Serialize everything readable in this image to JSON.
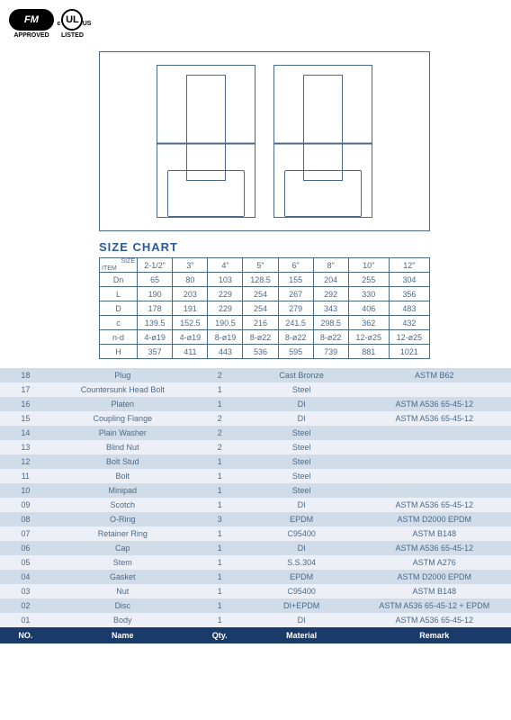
{
  "logos": {
    "fm": "FM",
    "fm_label": "APPROVED",
    "ul": "UL",
    "ul_c": "c",
    "ul_us": "US",
    "ul_label": "LISTED"
  },
  "sizechart": {
    "title": "SIZE CHART",
    "corner_size": "SIZE",
    "corner_item": "ITEM",
    "headers": [
      "2-1/2\"",
      "3\"",
      "4\"",
      "5\"",
      "6\"",
      "8\"",
      "10\"",
      "12\""
    ],
    "rows": [
      {
        "label": "Dn",
        "v": [
          "65",
          "80",
          "103",
          "128.5",
          "155",
          "204",
          "255",
          "304"
        ]
      },
      {
        "label": "L",
        "v": [
          "190",
          "203",
          "229",
          "254",
          "267",
          "292",
          "330",
          "356"
        ]
      },
      {
        "label": "D",
        "v": [
          "178",
          "191",
          "229",
          "254",
          "279",
          "343",
          "406",
          "483"
        ]
      },
      {
        "label": "c",
        "v": [
          "139.5",
          "152.5",
          "190.5",
          "216",
          "241.5",
          "298.5",
          "362",
          "432"
        ]
      },
      {
        "label": "n-d",
        "v": [
          "4-ø19",
          "4-ø19",
          "8-ø19",
          "8-ø22",
          "8-ø22",
          "8-ø22",
          "12-ø25",
          "12-ø25"
        ]
      },
      {
        "label": "H",
        "v": [
          "357",
          "411",
          "443",
          "536",
          "595",
          "739",
          "881",
          "1021"
        ]
      }
    ]
  },
  "bom": {
    "header": {
      "no": "NO.",
      "name": "Name",
      "qty": "Qty.",
      "material": "Material",
      "remark": "Remark"
    },
    "rows": [
      {
        "no": "18",
        "name": "Plug",
        "qty": "2",
        "material": "Cast Bronze",
        "remark": "ASTM  B62"
      },
      {
        "no": "17",
        "name": "Countersunk Head Bolt",
        "qty": "1",
        "material": "Steel",
        "remark": ""
      },
      {
        "no": "16",
        "name": "Platen",
        "qty": "1",
        "material": "DI",
        "remark": "ASTM A536 65-45-12"
      },
      {
        "no": "15",
        "name": "Coupling Flange",
        "qty": "2",
        "material": "DI",
        "remark": "ASTM A536 65-45-12"
      },
      {
        "no": "14",
        "name": "Plain Washer",
        "qty": "2",
        "material": "Steel",
        "remark": ""
      },
      {
        "no": "13",
        "name": "Blind Nut",
        "qty": "2",
        "material": "Steel",
        "remark": ""
      },
      {
        "no": "12",
        "name": "Bolt Stud",
        "qty": "1",
        "material": "Steel",
        "remark": ""
      },
      {
        "no": "11",
        "name": "Bolt",
        "qty": "1",
        "material": "Steel",
        "remark": ""
      },
      {
        "no": "10",
        "name": "Minipad",
        "qty": "1",
        "material": "Steel",
        "remark": ""
      },
      {
        "no": "09",
        "name": "Scotch",
        "qty": "1",
        "material": "DI",
        "remark": "ASTM A536 65-45-12"
      },
      {
        "no": "08",
        "name": "O-Ring",
        "qty": "3",
        "material": "EPDM",
        "remark": "ASTM D2000 EPDM"
      },
      {
        "no": "07",
        "name": "Retainer Ring",
        "qty": "1",
        "material": "C95400",
        "remark": "ASTM B148"
      },
      {
        "no": "06",
        "name": "Cap",
        "qty": "1",
        "material": "DI",
        "remark": "ASTM A536 65-45-12"
      },
      {
        "no": "05",
        "name": "Stem",
        "qty": "1",
        "material": "S.S.304",
        "remark": "ASTM A276"
      },
      {
        "no": "04",
        "name": "Gasket",
        "qty": "1",
        "material": "EPDM",
        "remark": "ASTM D2000 EPDM"
      },
      {
        "no": "03",
        "name": "Nut",
        "qty": "1",
        "material": "C95400",
        "remark": "ASTM B148"
      },
      {
        "no": "02",
        "name": "Disc",
        "qty": "1",
        "material": "DI+EPDM",
        "remark": "ASTM A536 65-45-12  +  EPDM"
      },
      {
        "no": "01",
        "name": "Body",
        "qty": "1",
        "material": "DI",
        "remark": "ASTM A536 65-45-12"
      }
    ]
  },
  "col_widths": {
    "no": "10%",
    "name": "28%",
    "qty": "10%",
    "material": "22%",
    "remark": "30%"
  }
}
